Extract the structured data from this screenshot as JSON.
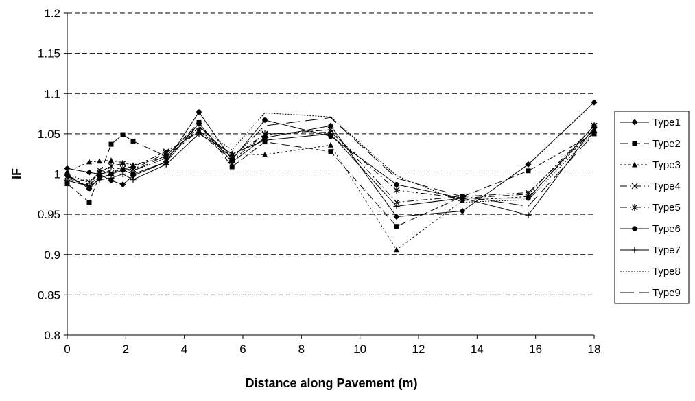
{
  "chart_data": {
    "type": "line",
    "title": "",
    "xlabel": "Distance along Pavement (m)",
    "ylabel": "IF",
    "xlim": [
      0,
      18
    ],
    "ylim": [
      0.8,
      1.2
    ],
    "x_ticks": [
      0,
      2,
      4,
      6,
      8,
      10,
      12,
      14,
      16,
      18
    ],
    "x_tick_labels": [
      "0",
      "2",
      "4",
      "6",
      "8",
      "10",
      "12",
      "14",
      "16",
      "18"
    ],
    "y_ticks": [
      0.8,
      0.85,
      0.9,
      0.95,
      1.0,
      1.05,
      1.1,
      1.15,
      1.2
    ],
    "y_tick_labels": [
      "0.8",
      "0.85",
      "0.9",
      "0.95",
      "1",
      "1.05",
      "1.1",
      "1.15",
      "1.2"
    ],
    "grid": "horizontal dashed",
    "legend_position": "right",
    "x": [
      0,
      0.75,
      1.1,
      1.5,
      1.9,
      2.25,
      3.38,
      4.5,
      5.63,
      6.75,
      9.0,
      11.25,
      13.5,
      15.75,
      18.0
    ],
    "series": [
      {
        "name": "Type1",
        "marker": "diamond",
        "dash": "solid",
        "values": [
          1.007,
          1.002,
          1.0,
          0.992,
          0.987,
          0.998,
          1.015,
          1.063,
          1.015,
          1.045,
          1.06,
          0.947,
          0.954,
          1.012,
          1.089
        ]
      },
      {
        "name": "Type2",
        "marker": "square",
        "dash": "long-dash",
        "values": [
          0.988,
          0.965,
          0.998,
          1.037,
          1.049,
          1.041,
          1.022,
          1.064,
          1.009,
          1.04,
          1.028,
          0.935,
          0.972,
          1.004,
          1.05
        ]
      },
      {
        "name": "Type3",
        "marker": "triangle",
        "dash": "dotted",
        "values": [
          1.003,
          1.015,
          1.016,
          1.017,
          1.014,
          1.011,
          1.021,
          1.054,
          1.025,
          1.024,
          1.036,
          0.906,
          0.967,
          0.972,
          1.055
        ]
      },
      {
        "name": "Type4",
        "marker": "x",
        "dash": "dash-dot",
        "values": [
          0.995,
          0.985,
          1.005,
          1.001,
          1.007,
          1.009,
          1.028,
          1.052,
          1.017,
          1.049,
          1.055,
          0.965,
          0.972,
          0.977,
          1.055
        ]
      },
      {
        "name": "Type5",
        "marker": "asterisk",
        "dash": "dash-dot",
        "values": [
          0.997,
          0.99,
          1.002,
          1.01,
          1.013,
          1.006,
          1.026,
          1.054,
          1.02,
          1.05,
          1.052,
          0.98,
          0.97,
          0.975,
          1.06
        ]
      },
      {
        "name": "Type6",
        "marker": "circle",
        "dash": "solid",
        "values": [
          0.999,
          0.982,
          0.995,
          1.0,
          1.005,
          1.0,
          1.015,
          1.077,
          1.018,
          1.067,
          1.047,
          0.987,
          0.97,
          0.97,
          1.06
        ]
      },
      {
        "name": "Type7",
        "marker": "plus",
        "dash": "solid",
        "values": [
          0.992,
          0.985,
          0.993,
          0.995,
          1.0,
          0.993,
          1.012,
          1.05,
          1.025,
          1.042,
          1.05,
          0.96,
          0.97,
          0.949,
          1.058
        ]
      },
      {
        "name": "Type8",
        "marker": "none",
        "dash": "fine-dotted",
        "values": [
          1.0,
          0.99,
          1.0,
          1.003,
          1.006,
          1.004,
          1.02,
          1.058,
          1.03,
          1.076,
          1.071,
          0.998,
          0.965,
          0.968,
          1.052
        ]
      },
      {
        "name": "Type9",
        "marker": "none",
        "dash": "long-gap",
        "values": [
          0.997,
          0.985,
          0.999,
          1.005,
          1.008,
          1.004,
          1.023,
          1.06,
          1.02,
          1.06,
          1.07,
          0.995,
          0.972,
          0.96,
          1.05
        ]
      }
    ]
  }
}
